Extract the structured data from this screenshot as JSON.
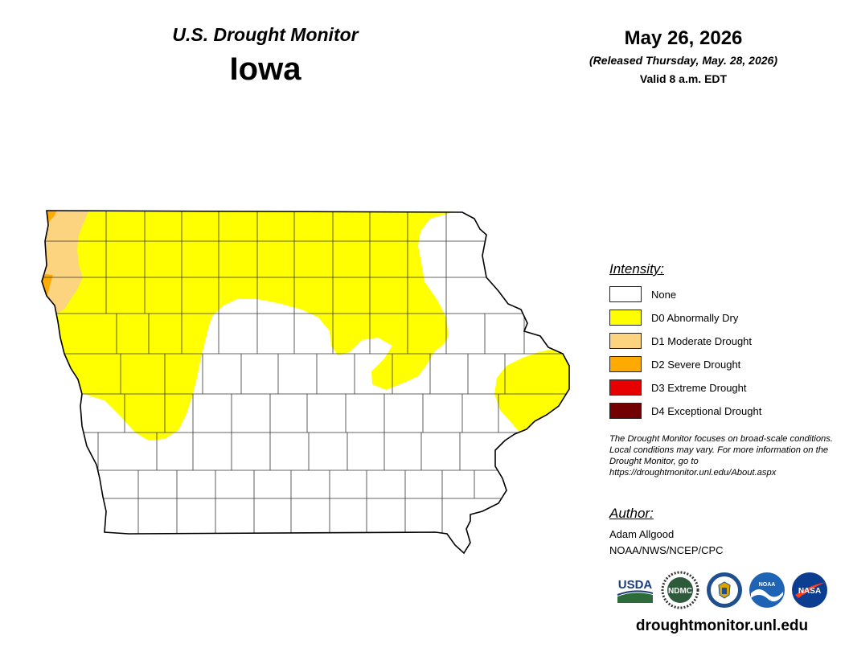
{
  "header": {
    "title": "U.S. Drought Monitor",
    "state": "Iowa",
    "date": "May 26, 2026",
    "released": "(Released Thursday, May. 28, 2026)",
    "valid": "Valid 8 a.m. EDT"
  },
  "legend": {
    "title": "Intensity:",
    "items": [
      {
        "label": "None",
        "color": "#ffffff"
      },
      {
        "label": "D0 Abnormally Dry",
        "color": "#ffff00"
      },
      {
        "label": "D1 Moderate Drought",
        "color": "#fcd37f"
      },
      {
        "label": "D2 Severe Drought",
        "color": "#ffaa00"
      },
      {
        "label": "D3 Extreme Drought",
        "color": "#e60000"
      },
      {
        "label": "D4 Exceptional Drought",
        "color": "#730000"
      }
    ]
  },
  "note": "The Drought Monitor focuses on broad-scale conditions. Local conditions may vary. For more information on the Drought Monitor, go to https://droughtmonitor.unl.edu/About.aspx",
  "author": {
    "title": "Author:",
    "name": "Adam Allgood",
    "org": "NOAA/NWS/NCEP/CPC"
  },
  "logos": {
    "usda": "USDA",
    "ndmc": "NDMC",
    "noaa": "NOAA",
    "nasa": "NASA"
  },
  "url": "droughtmonitor.unl.edu"
}
